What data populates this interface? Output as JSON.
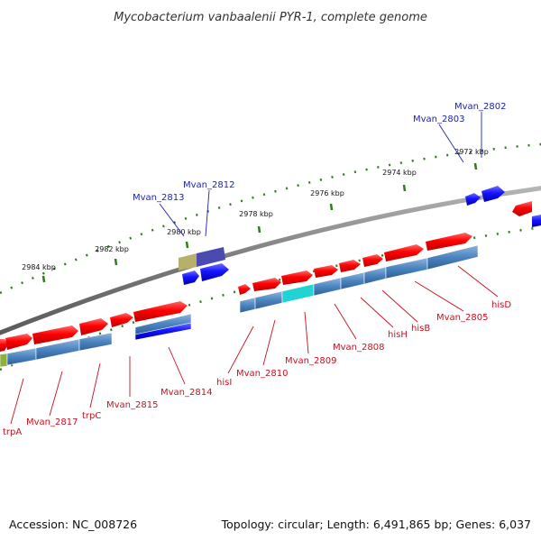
{
  "title": "Mycobacterium vanbaalenii PYR-1, complete genome",
  "footer": {
    "accession": "Accession: NC_008726",
    "summary": "Topology: circular; Length: 6,491,865 bp; Genes: 6,037"
  },
  "colors": {
    "backbone": "#8a8a8a",
    "tick_dot": "#2e7d1c",
    "forward_gene": "#ff0000",
    "cds": "#4a84c0",
    "reverse_gene": "#1414ff",
    "highlight": "#22d3d3",
    "olive": "#b7b06a",
    "purple": "#4b4ab0",
    "green": "#8db13a",
    "blue_label": "#1c23b0",
    "red_label": "#c8101e"
  },
  "ticks": [
    "2972 kbp",
    "2974 kbp",
    "2976 kbp",
    "2978 kbp",
    "2980 kbp",
    "2982 kbp",
    "2984 kbp"
  ],
  "top_labels": [
    "Mvan_2802",
    "Mvan_2803",
    "Mvan_2812",
    "Mvan_2813"
  ],
  "bottom_labels": [
    "hisD",
    "Mvan_2805",
    "hisB",
    "hisH",
    "Mvan_2808",
    "Mvan_2809",
    "Mvan_2810",
    "hisI",
    "Mvan_2814",
    "Mvan_2815",
    "trpC",
    "Mvan_2817",
    "trpA"
  ]
}
